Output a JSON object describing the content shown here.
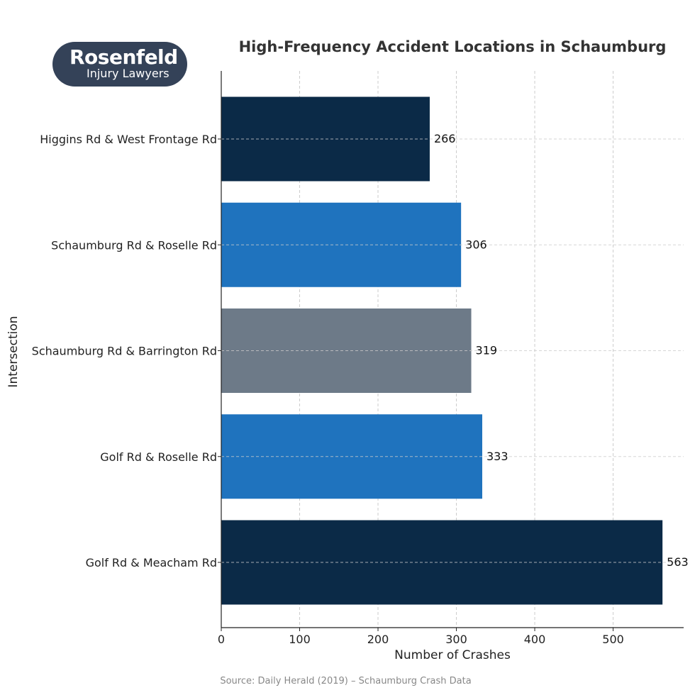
{
  "logo": {
    "brand": "Rosenfeld",
    "tagline": "Injury Lawyers",
    "background_color": "#344258"
  },
  "source": "Source: Daily Herald (2019) – Schaumburg Crash Data",
  "chart_data": {
    "type": "bar",
    "orientation": "horizontal",
    "title": "High-Frequency Accident Locations in Schaumburg",
    "xlabel": "Number of Crashes",
    "ylabel": "Intersection",
    "categories": [
      "Higgins Rd & West Frontage Rd",
      "Schaumburg Rd & Roselle Rd",
      "Schaumburg Rd & Barrington Rd",
      "Golf Rd & Roselle Rd",
      "Golf Rd & Meacham Rd"
    ],
    "values": [
      266,
      306,
      319,
      333,
      563
    ],
    "colors": [
      "#0b2a47",
      "#1f73be",
      "#6d7a88",
      "#1f73be",
      "#0b2a47"
    ],
    "xlim": [
      0,
      590
    ],
    "xticks": [
      0,
      100,
      200,
      300,
      400,
      500
    ],
    "grid": true,
    "data_labels": true
  }
}
